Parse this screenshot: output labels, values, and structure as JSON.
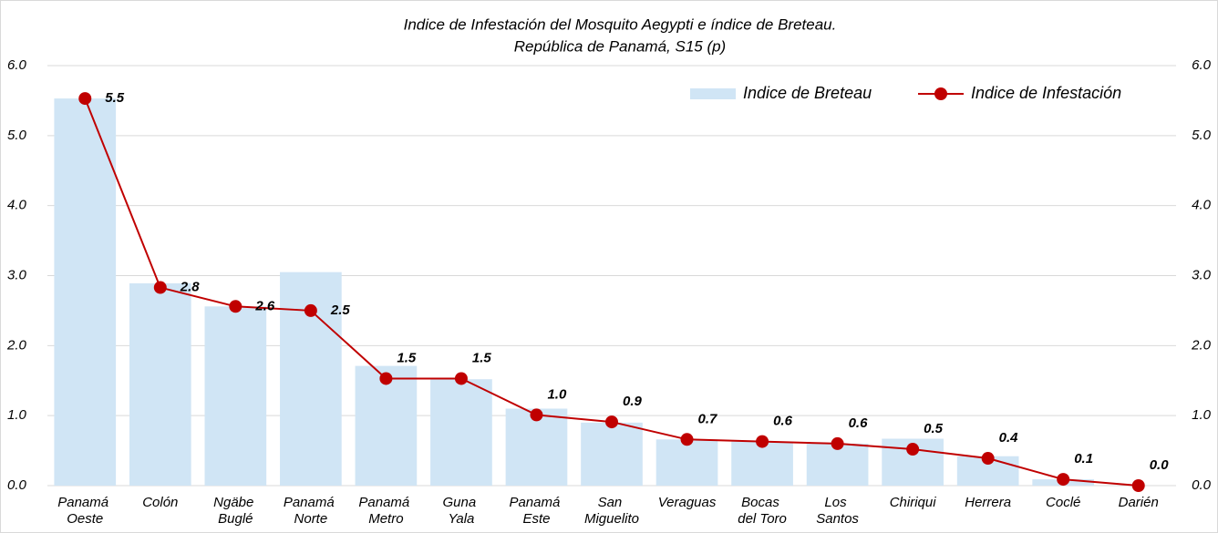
{
  "chart_data": {
    "type": "bar-line",
    "title": "Indice de Infestación del Mosquito Aegypti e índice de Breteau.",
    "subtitle": "República de Panamá, S15 (p)",
    "categories": [
      "Panamá Oeste",
      "Colón",
      "Ngäbe Buglé",
      "Panamá Norte",
      "Panamá Metro",
      "Guna Yala",
      "Panamá Este",
      "San Miguelito",
      "Veraguas",
      "Bocas del Toro",
      "Los Santos",
      "Chiriqui",
      "Herrera",
      "Coclé",
      "Darién"
    ],
    "series": [
      {
        "name": "Indice de Breteau",
        "color": "#d0e5f5",
        "values": [
          5.53,
          2.89,
          2.56,
          3.05,
          1.71,
          1.52,
          1.1,
          0.9,
          0.66,
          0.63,
          0.6,
          0.67,
          0.42,
          0.09,
          0.0
        ]
      },
      {
        "name": "Indice de Infestación",
        "color": "#c00000",
        "axis": "y2",
        "values": [
          5.53,
          2.83,
          2.56,
          2.5,
          1.53,
          1.53,
          1.01,
          0.91,
          0.66,
          0.63,
          0.6,
          0.52,
          0.39,
          0.09,
          0.0
        ],
        "value_labels": [
          "5.5",
          "2.8",
          "2.6",
          "2.5",
          "1.5",
          "1.5",
          "1.0",
          "0.9",
          "0.7",
          "0.6",
          "0.6",
          "0.5",
          "0.4",
          "0.1",
          "0.0"
        ]
      }
    ],
    "ylim": [
      0,
      6
    ],
    "yticks": [
      {
        "value": 0,
        "label": "0.0"
      },
      {
        "value": 1,
        "label": "1.0"
      },
      {
        "value": 2,
        "label": "2.0"
      },
      {
        "value": 3,
        "label": "3.0"
      },
      {
        "value": 4,
        "label": "4.0"
      },
      {
        "value": 5,
        "label": "5.0"
      },
      {
        "value": 6,
        "label": "6.0"
      }
    ],
    "y2lim": [
      0,
      6
    ],
    "y2ticks": [
      {
        "value": 0,
        "label": "0.0"
      },
      {
        "value": 1,
        "label": "1.0"
      },
      {
        "value": 2,
        "label": "2.0"
      },
      {
        "value": 3,
        "label": "3.0"
      },
      {
        "value": 4,
        "label": "4.0"
      },
      {
        "value": 5,
        "label": "5.0"
      },
      {
        "value": 6,
        "label": "6.0"
      }
    ],
    "grid": true,
    "legend": "top-right"
  }
}
